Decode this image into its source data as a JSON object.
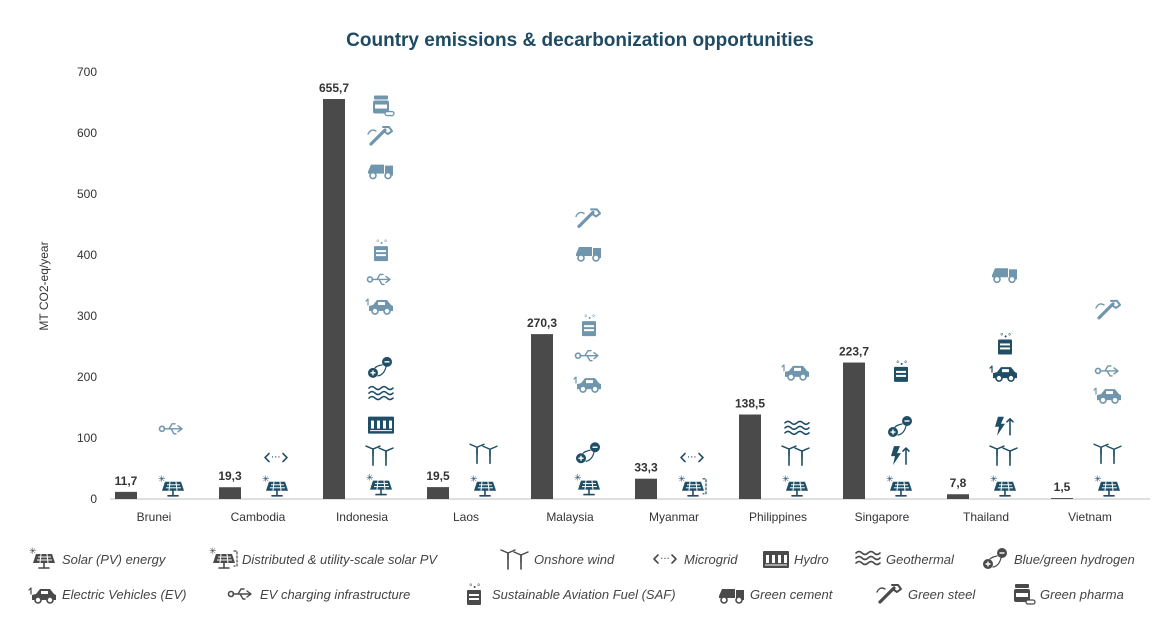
{
  "chart_data": {
    "type": "bar",
    "title": "Country emissions & decarbonization opportunities",
    "ylabel": "MT CO2-eq/year",
    "xlabel": "",
    "ylim": [
      0,
      700
    ],
    "yticks": [
      "0",
      "100",
      "200",
      "300",
      "400",
      "500",
      "600",
      "700"
    ],
    "grid": false,
    "legend_position": "bottom",
    "bar_color": "#4a4a4a",
    "categories": [
      "Brunei",
      "Cambodia",
      "Indonesia",
      "Laos",
      "Malaysia",
      "Myanmar",
      "Philippines",
      "Singapore",
      "Thailand",
      "Vietnam"
    ],
    "values": [
      11.7,
      19.3,
      655.7,
      19.5,
      270.3,
      33.3,
      138.5,
      223.7,
      7.8,
      1.5
    ],
    "value_labels": [
      "11,7",
      "19,3",
      "655,7",
      "19,5",
      "270,3",
      "33,3",
      "138,5",
      "223,7",
      "7,8",
      "1,5"
    ],
    "opportunities": [
      {
        "country": "Brunei",
        "icons": [
          {
            "icon": "solar-pv-icon",
            "y": 20,
            "shade": "dark"
          },
          {
            "icon": "ev-charging-icon",
            "y": 115,
            "shade": "light"
          }
        ]
      },
      {
        "country": "Cambodia",
        "icons": [
          {
            "icon": "solar-pv-icon",
            "y": 20,
            "shade": "dark"
          },
          {
            "icon": "microgrid-icon",
            "y": 68,
            "shade": "dark"
          }
        ]
      },
      {
        "country": "Indonesia",
        "icons": [
          {
            "icon": "solar-pv-icon",
            "y": 22,
            "shade": "dark"
          },
          {
            "icon": "wind-icon",
            "y": 72,
            "shade": "dark"
          },
          {
            "icon": "hydro-icon",
            "y": 122,
            "shade": "dark"
          },
          {
            "icon": "geothermal-icon",
            "y": 172,
            "shade": "dark"
          },
          {
            "icon": "hydrogen-icon",
            "y": 215,
            "shade": "dark"
          },
          {
            "icon": "ev-icon",
            "y": 318,
            "shade": "light"
          },
          {
            "icon": "ev-charging-icon",
            "y": 360,
            "shade": "light"
          },
          {
            "icon": "saf-icon",
            "y": 408,
            "shade": "light"
          },
          {
            "icon": "cement-icon",
            "y": 540,
            "shade": "light"
          },
          {
            "icon": "steel-icon",
            "y": 595,
            "shade": "light"
          },
          {
            "icon": "pharma-icon",
            "y": 645,
            "shade": "light"
          }
        ]
      },
      {
        "country": "Laos",
        "icons": [
          {
            "icon": "solar-pv-icon",
            "y": 20,
            "shade": "dark"
          },
          {
            "icon": "wind-icon",
            "y": 75,
            "shade": "dark"
          }
        ]
      },
      {
        "country": "Malaysia",
        "icons": [
          {
            "icon": "solar-pv-icon",
            "y": 22,
            "shade": "dark"
          },
          {
            "icon": "hydrogen-icon",
            "y": 75,
            "shade": "dark"
          },
          {
            "icon": "ev-icon",
            "y": 190,
            "shade": "light"
          },
          {
            "icon": "ev-charging-icon",
            "y": 235,
            "shade": "light"
          },
          {
            "icon": "saf-icon",
            "y": 285,
            "shade": "light"
          },
          {
            "icon": "cement-icon",
            "y": 405,
            "shade": "light"
          },
          {
            "icon": "steel-icon",
            "y": 460,
            "shade": "light"
          }
        ]
      },
      {
        "country": "Myanmar",
        "icons": [
          {
            "icon": "distributed-solar-icon",
            "y": 20,
            "shade": "dark"
          },
          {
            "icon": "microgrid-icon",
            "y": 68,
            "shade": "dark"
          }
        ]
      },
      {
        "country": "Philippines",
        "icons": [
          {
            "icon": "solar-pv-icon",
            "y": 20,
            "shade": "dark"
          },
          {
            "icon": "wind-icon",
            "y": 72,
            "shade": "dark"
          },
          {
            "icon": "geothermal-icon",
            "y": 115,
            "shade": "dark"
          },
          {
            "icon": "ev-icon",
            "y": 210,
            "shade": "light"
          }
        ]
      },
      {
        "country": "Singapore",
        "icons": [
          {
            "icon": "solar-pv-icon",
            "y": 20,
            "shade": "dark"
          },
          {
            "icon": "bolt-up-icon",
            "y": 72,
            "shade": "dark"
          },
          {
            "icon": "hydrogen-icon",
            "y": 118,
            "shade": "dark"
          },
          {
            "icon": "saf-icon",
            "y": 210,
            "shade": "dark"
          }
        ]
      },
      {
        "country": "Thailand",
        "icons": [
          {
            "icon": "solar-pv-icon",
            "y": 20,
            "shade": "dark"
          },
          {
            "icon": "wind-icon",
            "y": 72,
            "shade": "dark"
          },
          {
            "icon": "bolt-up-icon",
            "y": 120,
            "shade": "dark"
          },
          {
            "icon": "ev-icon",
            "y": 208,
            "shade": "dark"
          },
          {
            "icon": "saf-icon",
            "y": 255,
            "shade": "dark"
          },
          {
            "icon": "cement-icon",
            "y": 370,
            "shade": "light"
          }
        ]
      },
      {
        "country": "Vietnam",
        "icons": [
          {
            "icon": "solar-pv-icon",
            "y": 20,
            "shade": "dark"
          },
          {
            "icon": "wind-icon",
            "y": 75,
            "shade": "dark"
          },
          {
            "icon": "ev-icon",
            "y": 172,
            "shade": "light"
          },
          {
            "icon": "ev-charging-icon",
            "y": 210,
            "shade": "light"
          },
          {
            "icon": "steel-icon",
            "y": 310,
            "shade": "light"
          }
        ]
      }
    ]
  },
  "colors": {
    "icon_dark": "#1f4e66",
    "icon_light": "#6f96ad",
    "axis": "#bfbfbf",
    "title": "#1e4a62"
  },
  "legend": {
    "items": [
      {
        "icon": "solar-pv-icon",
        "label": "Solar (PV) energy"
      },
      {
        "icon": "distributed-solar-icon",
        "label": "Distributed & utility-scale solar PV"
      },
      {
        "icon": "wind-icon",
        "label": "Onshore wind"
      },
      {
        "icon": "microgrid-icon",
        "label": "Microgrid"
      },
      {
        "icon": "hydro-icon",
        "label": "Hydro"
      },
      {
        "icon": "geothermal-icon",
        "label": "Geothermal"
      },
      {
        "icon": "hydrogen-icon",
        "label": "Blue/green hydrogen"
      },
      {
        "icon": "ev-icon",
        "label": "Electric Vehicles (EV)"
      },
      {
        "icon": "ev-charging-icon",
        "label": "EV charging infrastructure"
      },
      {
        "icon": "saf-icon",
        "label": "Sustainable Aviation Fuel (SAF)"
      },
      {
        "icon": "cement-icon",
        "label": "Green cement"
      },
      {
        "icon": "steel-icon",
        "label": "Green steel"
      },
      {
        "icon": "pharma-icon",
        "label": "Green pharma"
      }
    ]
  }
}
